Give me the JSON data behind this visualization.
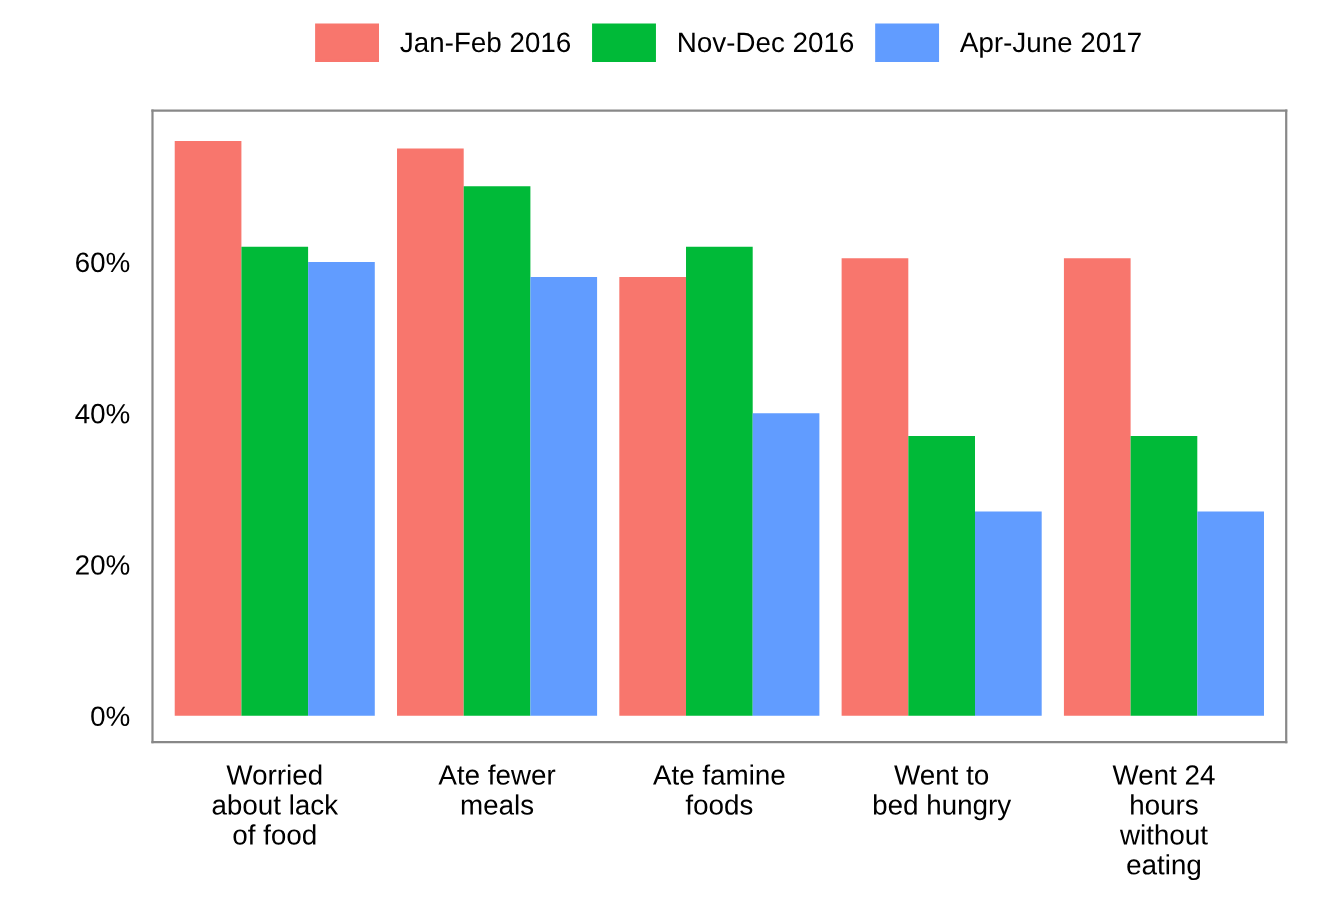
{
  "chart_data": {
    "type": "bar",
    "categories": [
      "Worried\nabout lack\nof food",
      "Ate fewer\nmeals",
      "Ate famine\nfoods",
      "Went to\nbed hungry",
      "Went 24\nhours\nwithout\neating"
    ],
    "series": [
      {
        "name": "Jan-Feb 2016",
        "color": "#f8766d",
        "values": [
          76,
          75,
          58,
          60.5,
          60.5
        ]
      },
      {
        "name": "Nov-Dec 2016",
        "color": "#00ba38",
        "values": [
          62,
          70,
          62,
          37,
          37
        ]
      },
      {
        "name": "Apr-June 2017",
        "color": "#619cff",
        "values": [
          60,
          58,
          40,
          27,
          27
        ]
      }
    ],
    "ylim": [
      -3.5,
      80
    ],
    "yticks": [
      {
        "value": 0,
        "label": "0%"
      },
      {
        "value": 20,
        "label": "20%"
      },
      {
        "value": 40,
        "label": "40%"
      },
      {
        "value": 60,
        "label": "60%"
      }
    ],
    "grid": false,
    "legend": "top"
  }
}
